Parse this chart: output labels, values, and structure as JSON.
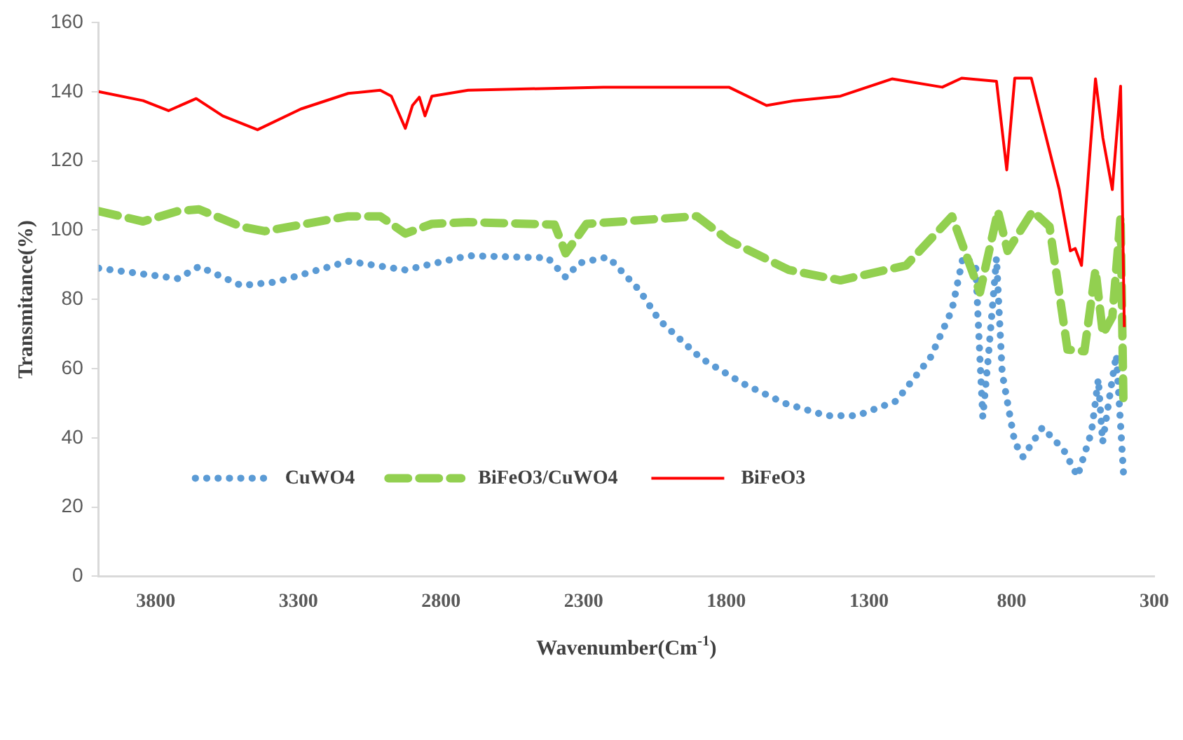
{
  "chart_data": {
    "type": "line",
    "xlabel": "Wavenumber(Cm$^{-1}$)",
    "ylabel": "Transmitance(%)",
    "xlim": [
      4000,
      300
    ],
    "xticks": [
      3800,
      3300,
      2800,
      2300,
      1800,
      1300,
      800,
      300
    ],
    "ylim": [
      0,
      160
    ],
    "yticks": [
      0,
      20,
      40,
      60,
      80,
      100,
      120,
      140,
      160
    ],
    "legend": "bottom left",
    "marker": "none",
    "series": [
      {
        "name": "CuWO4",
        "color": "#5b9bd5",
        "line_style": "dotted",
        "x": [
          4000,
          3722,
          3648,
          3500,
          3379,
          3125,
          2925,
          2705,
          2426,
          2363,
          2314,
          2231,
          2211,
          2104,
          2035,
          1889,
          1742,
          1596,
          1449,
          1342,
          1205,
          1083,
          1009,
          970,
          926,
          911,
          901,
          882,
          853,
          833,
          789,
          760,
          692,
          618,
          569,
          520,
          496,
          481,
          447,
          433,
          408
        ],
        "values": [
          89,
          86,
          89.5,
          84,
          85,
          91,
          88.5,
          92.6,
          92,
          86.4,
          90.5,
          92,
          92,
          82.6,
          74,
          63,
          55.7,
          50,
          46.4,
          46.4,
          50.6,
          63.4,
          77,
          92.3,
          90,
          63,
          46,
          63,
          92,
          58.7,
          38.7,
          34.5,
          43,
          36.6,
          28.9,
          41.7,
          57,
          38.7,
          57,
          64,
          30
        ]
      },
      {
        "name": "BiFeO3/CuWO4",
        "color": "#92d050",
        "line_style": "dashed",
        "x": [
          4000,
          3844,
          3722,
          3648,
          3500,
          3418,
          3125,
          3013,
          2925,
          2832,
          2705,
          2402,
          2363,
          2290,
          1903,
          1791,
          1581,
          1400,
          1170,
          1009,
          911,
          848,
          814,
          726,
          667,
          604,
          545,
          506,
          480,
          447,
          418,
          408
        ],
        "values": [
          105.5,
          102.5,
          105.5,
          106,
          101,
          99.7,
          104,
          104,
          99,
          101.8,
          102.3,
          101.6,
          93.3,
          101.8,
          104,
          97,
          88.5,
          85.5,
          89.8,
          104,
          82,
          105.5,
          94,
          105.5,
          101,
          65.5,
          65,
          88.5,
          70,
          75,
          104,
          50
        ]
      },
      {
        "name": "BiFeO3",
        "color": "#ff0000",
        "line_style": "solid",
        "x": [
          4000,
          3844,
          3755,
          3658,
          3565,
          3443,
          3291,
          3125,
          3013,
          2974,
          2925,
          2900,
          2876,
          2856,
          2832,
          2705,
          2231,
          1791,
          1659,
          1561,
          1400,
          1219,
          1043,
          975,
          853,
          817,
          789,
          731,
          633,
          594,
          577,
          555,
          506,
          480,
          447,
          418,
          405
        ],
        "values": [
          140,
          137.4,
          134.5,
          138,
          133,
          129,
          135,
          139.5,
          140.4,
          138.7,
          129.4,
          136,
          138.4,
          133,
          138.7,
          140.4,
          141.3,
          141.3,
          136,
          137.4,
          138.7,
          143.7,
          141.3,
          143.9,
          143,
          117.4,
          143.9,
          143.9,
          111.7,
          94,
          94.7,
          89.8,
          143.7,
          126.6,
          111.7,
          141.6,
          72
        ]
      }
    ]
  }
}
